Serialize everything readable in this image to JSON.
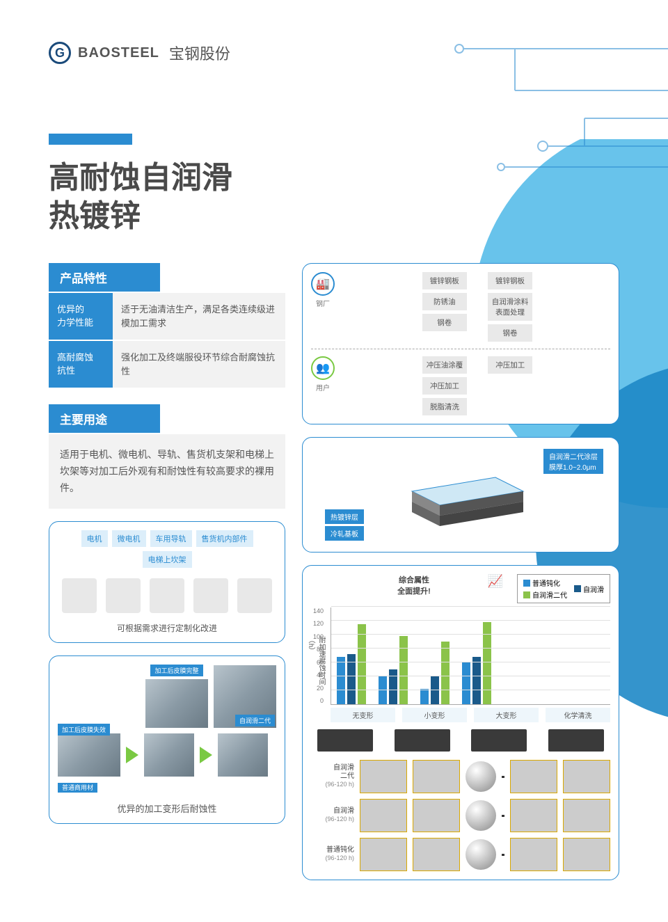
{
  "brand": {
    "logo_letter": "G",
    "name_en": "BAOSTEEL",
    "name_cn": "宝钢股份"
  },
  "title_line1": "高耐蚀自润滑",
  "title_line2": "热镀锌",
  "sections": {
    "features_header": "产品特性",
    "usage_header": "主要用途"
  },
  "features": [
    {
      "label": "优异的\n力学性能",
      "desc": "适于无油清洁生产，满足各类连续级进模加工需求"
    },
    {
      "label": "高耐腐蚀\n抗性",
      "desc": "强化加工及终端服役环节综合耐腐蚀抗性"
    }
  ],
  "usage_text": "适用于电机、微电机、导轨、售货机支架和电梯上坎架等对加工后外观有和耐蚀性有较高要求的裸用件。",
  "application_tags": [
    "电机",
    "微电机",
    "车用导轨",
    "售货机内部件",
    "电梯上坎架"
  ],
  "application_caption": "可根据需求进行定制化改进",
  "deform_images": {
    "label_intact": "加工后皮膜完整",
    "label_fail": "加工后皮膜失效",
    "label_gen2": "自润滑二代",
    "label_common": "普通商用材",
    "caption": "优异的加工变形后耐蚀性"
  },
  "flowchart": {
    "factory_label": "钢厂",
    "user_label": "用户",
    "col_left_top": [
      "镀锌钢板",
      "防锈油",
      "钢卷"
    ],
    "col_right_top": [
      "镀锌钢板",
      "自润滑涂料\n表面处理",
      "钢卷"
    ],
    "col_left_bot": [
      "冲压油涂覆",
      "冲压加工",
      "脱脂清洗"
    ],
    "col_right_bot": [
      "冲压加工"
    ]
  },
  "layer_diagram": {
    "coating": "自润滑二代涂层\n膜厚1.0~2.0μm",
    "zinc": "热镀锌层",
    "base": "冷轧基板"
  },
  "chart": {
    "title": "综合属性\n全面提升!",
    "legend": [
      {
        "name": "普通钝化",
        "color": "#2b8cd1"
      },
      {
        "name": "自润滑",
        "color": "#1a5a8a"
      },
      {
        "name": "自润滑二代",
        "color": "#8bc34a"
      }
    ],
    "y_label": "耐加速腐蚀时间（h）",
    "y_max": 140,
    "y_step": 20,
    "categories": [
      "无变形",
      "小变形",
      "大变形",
      "化学清洗"
    ],
    "series": [
      [
        68,
        72,
        115
      ],
      [
        40,
        50,
        98
      ],
      [
        22,
        40,
        90
      ],
      [
        60,
        68,
        118
      ]
    ],
    "bar_colors": [
      "#2b8cd1",
      "#1a5a8a",
      "#8bc34a"
    ]
  },
  "comparison": {
    "rows": [
      {
        "label": "自润滑\n二代",
        "time": "(96-120 h)"
      },
      {
        "label": "自润滑",
        "time": "(96-120 h)"
      },
      {
        "label": "普通钝化",
        "time": "(96-120 h)"
      }
    ]
  },
  "colors": {
    "primary": "#2b8cd1",
    "primary_dark": "#1a5a8a",
    "green": "#8bc34a",
    "bg_gray": "#f2f2f2",
    "bg_tag": "#dceefa",
    "circle1": "#4db8e8",
    "circle2": "#1e88c7"
  }
}
